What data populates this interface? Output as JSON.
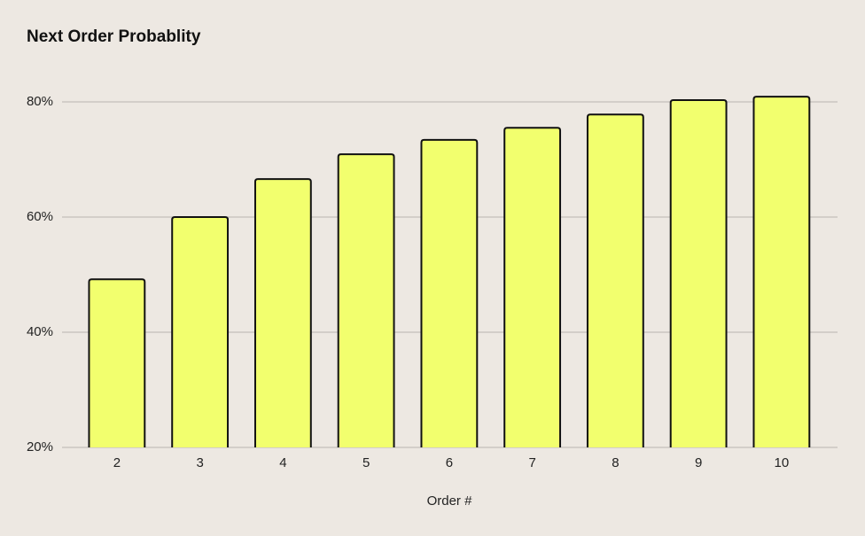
{
  "chart_data": {
    "type": "bar",
    "title": "Next Order Probablity",
    "x_label": "Order #",
    "categories": [
      "2",
      "3",
      "4",
      "5",
      "6",
      "7",
      "8",
      "9",
      "10"
    ],
    "values": [
      49.2,
      60,
      66.6,
      70.9,
      73.4,
      75.5,
      77.8,
      80.3,
      80.9
    ],
    "color": "#f2ff6e",
    "ylim": [
      20,
      83
    ],
    "yticks": [
      {
        "value": 20,
        "label": "20%"
      },
      {
        "value": 40,
        "label": "40%"
      },
      {
        "value": 60,
        "label": "60%"
      },
      {
        "value": 80,
        "label": "80%"
      }
    ],
    "grid": true
  }
}
